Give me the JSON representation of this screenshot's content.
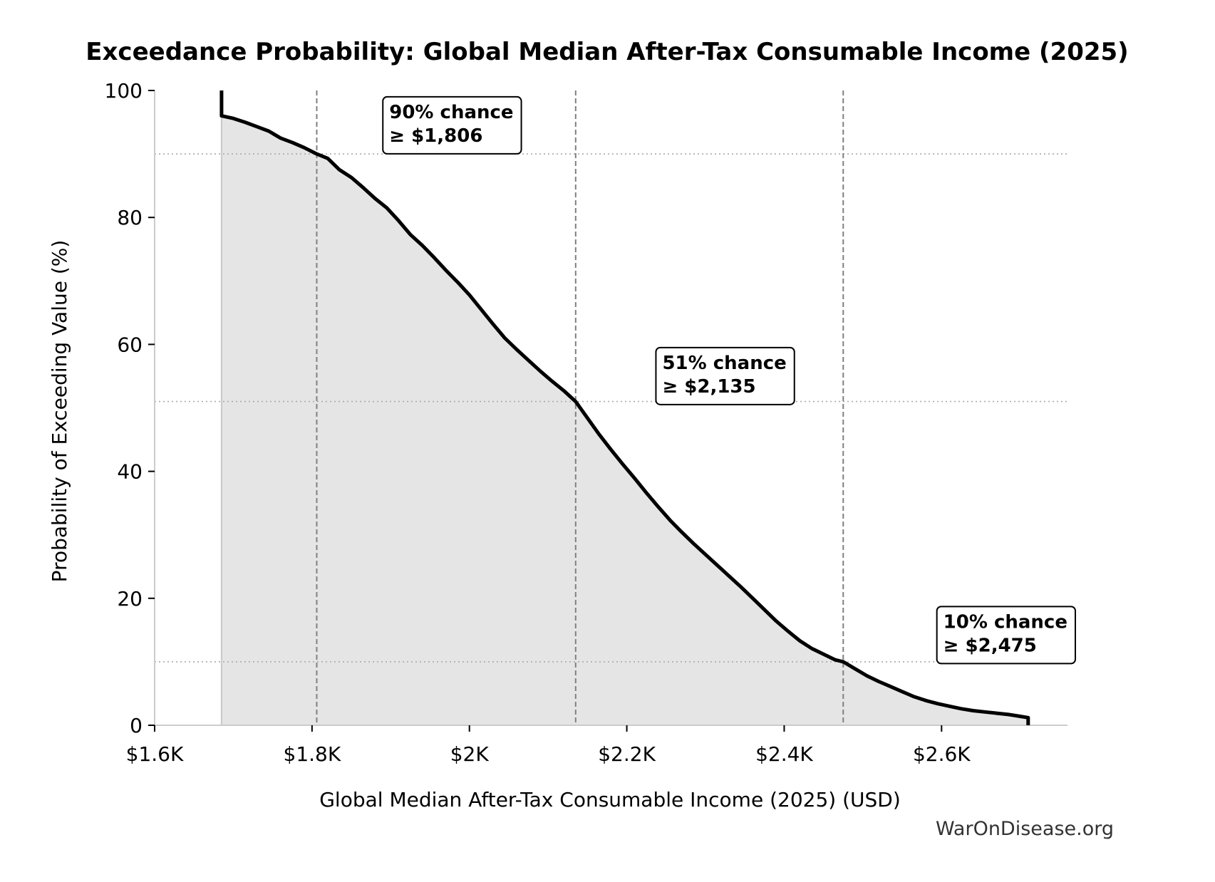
{
  "chart_data": {
    "type": "area",
    "title": "Exceedance Probability: Global Median After-Tax Consumable Income (2025)",
    "xlabel": "Global Median After-Tax Consumable Income (2025) (USD)",
    "ylabel": "Probability of Exceeding Value (%)",
    "xlim": [
      1600,
      2760
    ],
    "ylim": [
      0,
      100
    ],
    "x_ticks": [
      {
        "value": 1600,
        "label": "$1.6K"
      },
      {
        "value": 1800,
        "label": "$1.8K"
      },
      {
        "value": 2000,
        "label": "$2K"
      },
      {
        "value": 2200,
        "label": "$2.2K"
      },
      {
        "value": 2400,
        "label": "$2.4K"
      },
      {
        "value": 2600,
        "label": "$2.6K"
      }
    ],
    "y_ticks": [
      {
        "value": 0,
        "label": "0"
      },
      {
        "value": 20,
        "label": "20"
      },
      {
        "value": 40,
        "label": "40"
      },
      {
        "value": 60,
        "label": "60"
      },
      {
        "value": 80,
        "label": "80"
      },
      {
        "value": 100,
        "label": "100"
      }
    ],
    "series": [
      {
        "x": [
          1685,
          1685,
          1700,
          1715,
          1730,
          1745,
          1760,
          1775,
          1790,
          1806,
          1820,
          1835,
          1850,
          1865,
          1880,
          1895,
          1910,
          1925,
          1940,
          1955,
          1970,
          1985,
          2000,
          2015,
          2030,
          2045,
          2060,
          2075,
          2090,
          2105,
          2120,
          2135,
          2150,
          2165,
          2180,
          2195,
          2210,
          2225,
          2240,
          2255,
          2270,
          2285,
          2300,
          2315,
          2330,
          2345,
          2360,
          2375,
          2390,
          2405,
          2420,
          2435,
          2450,
          2465,
          2475,
          2490,
          2505,
          2520,
          2535,
          2550,
          2565,
          2580,
          2595,
          2610,
          2625,
          2640,
          2655,
          2670,
          2685,
          2700,
          2710,
          2710
        ],
        "y": [
          100,
          96,
          95.6,
          95,
          94.3,
          93.6,
          92.5,
          91.8,
          91,
          90,
          89.3,
          87.5,
          86.3,
          84.7,
          83,
          81.5,
          79.5,
          77.3,
          75.6,
          73.7,
          71.7,
          69.8,
          67.8,
          65.5,
          63.2,
          61,
          59.2,
          57.5,
          55.8,
          54.2,
          52.7,
          51,
          48.4,
          45.8,
          43.4,
          41.1,
          38.9,
          36.6,
          34.4,
          32.3,
          30.4,
          28.6,
          26.9,
          25.2,
          23.5,
          21.8,
          20,
          18.2,
          16.4,
          14.8,
          13.3,
          12.1,
          11.2,
          10.3,
          10,
          8.9,
          7.8,
          6.9,
          6.1,
          5.3,
          4.5,
          3.9,
          3.4,
          3,
          2.6,
          2.3,
          2.1,
          1.9,
          1.7,
          1.4,
          1.2,
          0
        ]
      }
    ],
    "reference_lines": {
      "vertical": [
        1806,
        2135,
        2475
      ],
      "horizontal": [
        90,
        51,
        10
      ]
    },
    "annotations": [
      {
        "x": 1890,
        "y": 99,
        "line1": "90% chance",
        "line2": "≥ $1,806"
      },
      {
        "x": 2237,
        "y": 59.5,
        "line1": "51% chance",
        "line2": "≥ $2,135"
      },
      {
        "x": 2594,
        "y": 18.7,
        "line1": "10% chance",
        "line2": "≥ $2,475"
      }
    ],
    "grid": false,
    "colors": {
      "curve": "#000000",
      "fill": "#e5e5e5",
      "reference": "#808080",
      "axis": "#cccccc"
    }
  },
  "watermark": "WarOnDisease.org"
}
